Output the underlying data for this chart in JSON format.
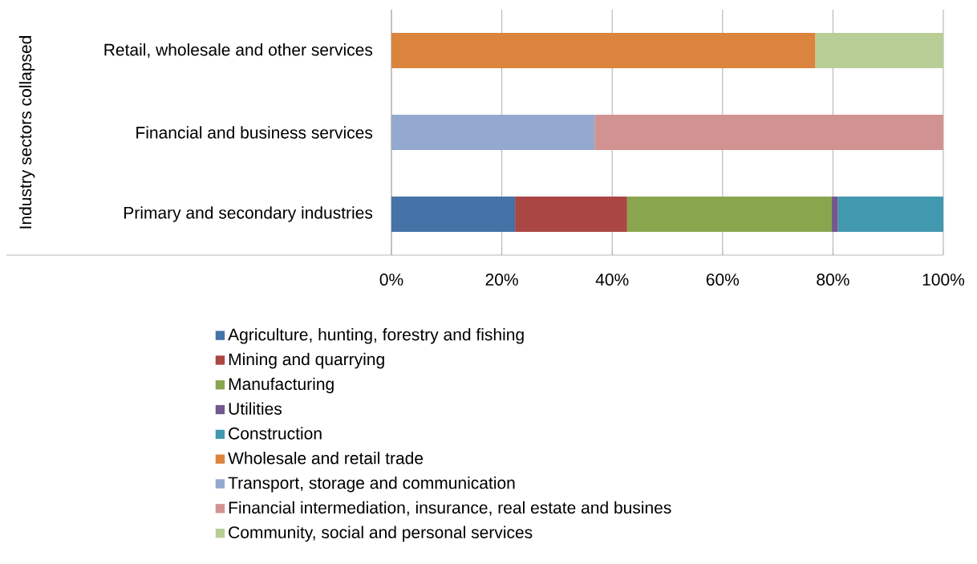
{
  "chart_data": {
    "type": "bar",
    "orientation": "horizontal",
    "stacked": true,
    "ylabel": "Industry sectors collapsed",
    "categories": [
      "Retail, wholesale and other services",
      "Financial and business services",
      "Primary and secondary industries"
    ],
    "series": [
      {
        "name": "Agriculture, hunting, forestry and fishing",
        "color": "#4572a7",
        "values": [
          0,
          0,
          22.4
        ]
      },
      {
        "name": "Mining and quarrying",
        "color": "#aa4643",
        "values": [
          0,
          0,
          20.3
        ]
      },
      {
        "name": "Manufacturing",
        "color": "#89a54e",
        "values": [
          0,
          0,
          37.1
        ]
      },
      {
        "name": "Utilities",
        "color": "#71588f",
        "values": [
          0,
          0,
          1.1
        ]
      },
      {
        "name": "Construction",
        "color": "#4198af",
        "values": [
          0,
          0,
          19.1
        ]
      },
      {
        "name": "Wholesale and retail trade",
        "color": "#db843d",
        "values": [
          76.8,
          0,
          0
        ]
      },
      {
        "name": "Transport, storage and communication",
        "color": "#93a9cf",
        "values": [
          0,
          36.8,
          0
        ]
      },
      {
        "name": "Financial intermediation, insurance, real estate and busines",
        "color": "#d19392",
        "values": [
          0,
          63.2,
          0
        ]
      },
      {
        "name": "Community, social and personal services",
        "color": "#b9cd96",
        "values": [
          23.2,
          0,
          0
        ]
      }
    ],
    "xlim": [
      0,
      100
    ],
    "xticks": [
      {
        "value": 0,
        "label": "0%"
      },
      {
        "value": 20,
        "label": "20%"
      },
      {
        "value": 40,
        "label": "40%"
      },
      {
        "value": 60,
        "label": "60%"
      },
      {
        "value": 80,
        "label": "80%"
      },
      {
        "value": 100,
        "label": "100%"
      }
    ],
    "grid": "x",
    "legend": "bottom"
  }
}
